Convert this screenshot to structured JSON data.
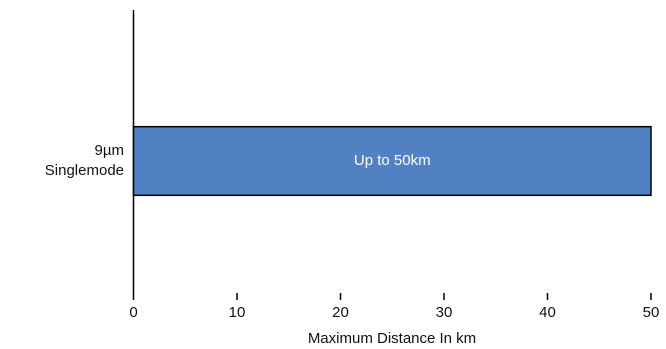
{
  "chart_data": {
    "type": "barh",
    "categories": [
      "9µm\nSinglemode"
    ],
    "values": [
      50
    ],
    "value_labels": [
      "Up to 50km"
    ],
    "color": "#5281c3",
    "xlabel": "Maximum Distance In km",
    "xlim": [
      0,
      50
    ],
    "xticks": [
      0,
      10,
      20,
      30,
      40,
      50
    ]
  }
}
